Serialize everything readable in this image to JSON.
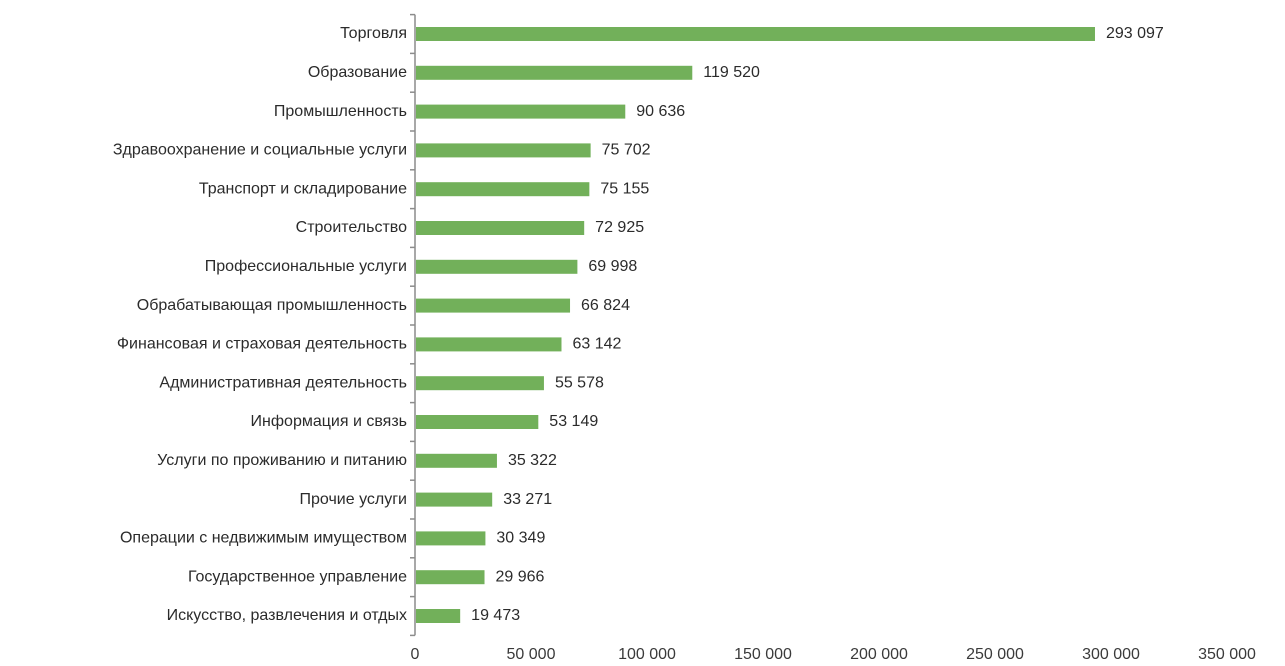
{
  "chart_data": {
    "type": "bar",
    "orientation": "horizontal",
    "categories": [
      "Торговля",
      "Образование",
      "Промышленность",
      "Здравоохранение и социальные услуги",
      "Транспорт и складирование",
      "Строительство",
      "Профессиональные услуги",
      "Обрабатывающая промышленность",
      "Финансовая и страховая деятельность",
      "Административная деятельность",
      "Информация и связь",
      "Услуги по проживанию и питанию",
      "Прочие услуги",
      "Операции с недвижимым имуществом",
      "Государственное управление",
      "Искусство, развлечения и отдых"
    ],
    "values": [
      293097,
      119520,
      90636,
      75702,
      75155,
      72925,
      69998,
      66824,
      63142,
      55578,
      53149,
      35322,
      33271,
      30349,
      29966,
      19473
    ],
    "value_labels": [
      "293 097",
      "119 520",
      "90 636",
      "75 702",
      "75 155",
      "72 925",
      "69 998",
      "66 824",
      "63 142",
      "55 578",
      "53 149",
      "35 322",
      "33 271",
      "30 349",
      "29 966",
      "19 473"
    ],
    "xlim": [
      0,
      350000
    ],
    "x_ticks": [
      0,
      50000,
      100000,
      150000,
      200000,
      250000,
      300000,
      350000
    ],
    "x_tick_labels": [
      "0",
      "50 000",
      "100 000",
      "150 000",
      "200 000",
      "250 000",
      "300 000",
      "350 000"
    ],
    "title": "",
    "xlabel": "",
    "ylabel": "",
    "grid": false,
    "legend": "none",
    "bar_color": "#72b05a",
    "axis_color": "#8c8c8c"
  }
}
